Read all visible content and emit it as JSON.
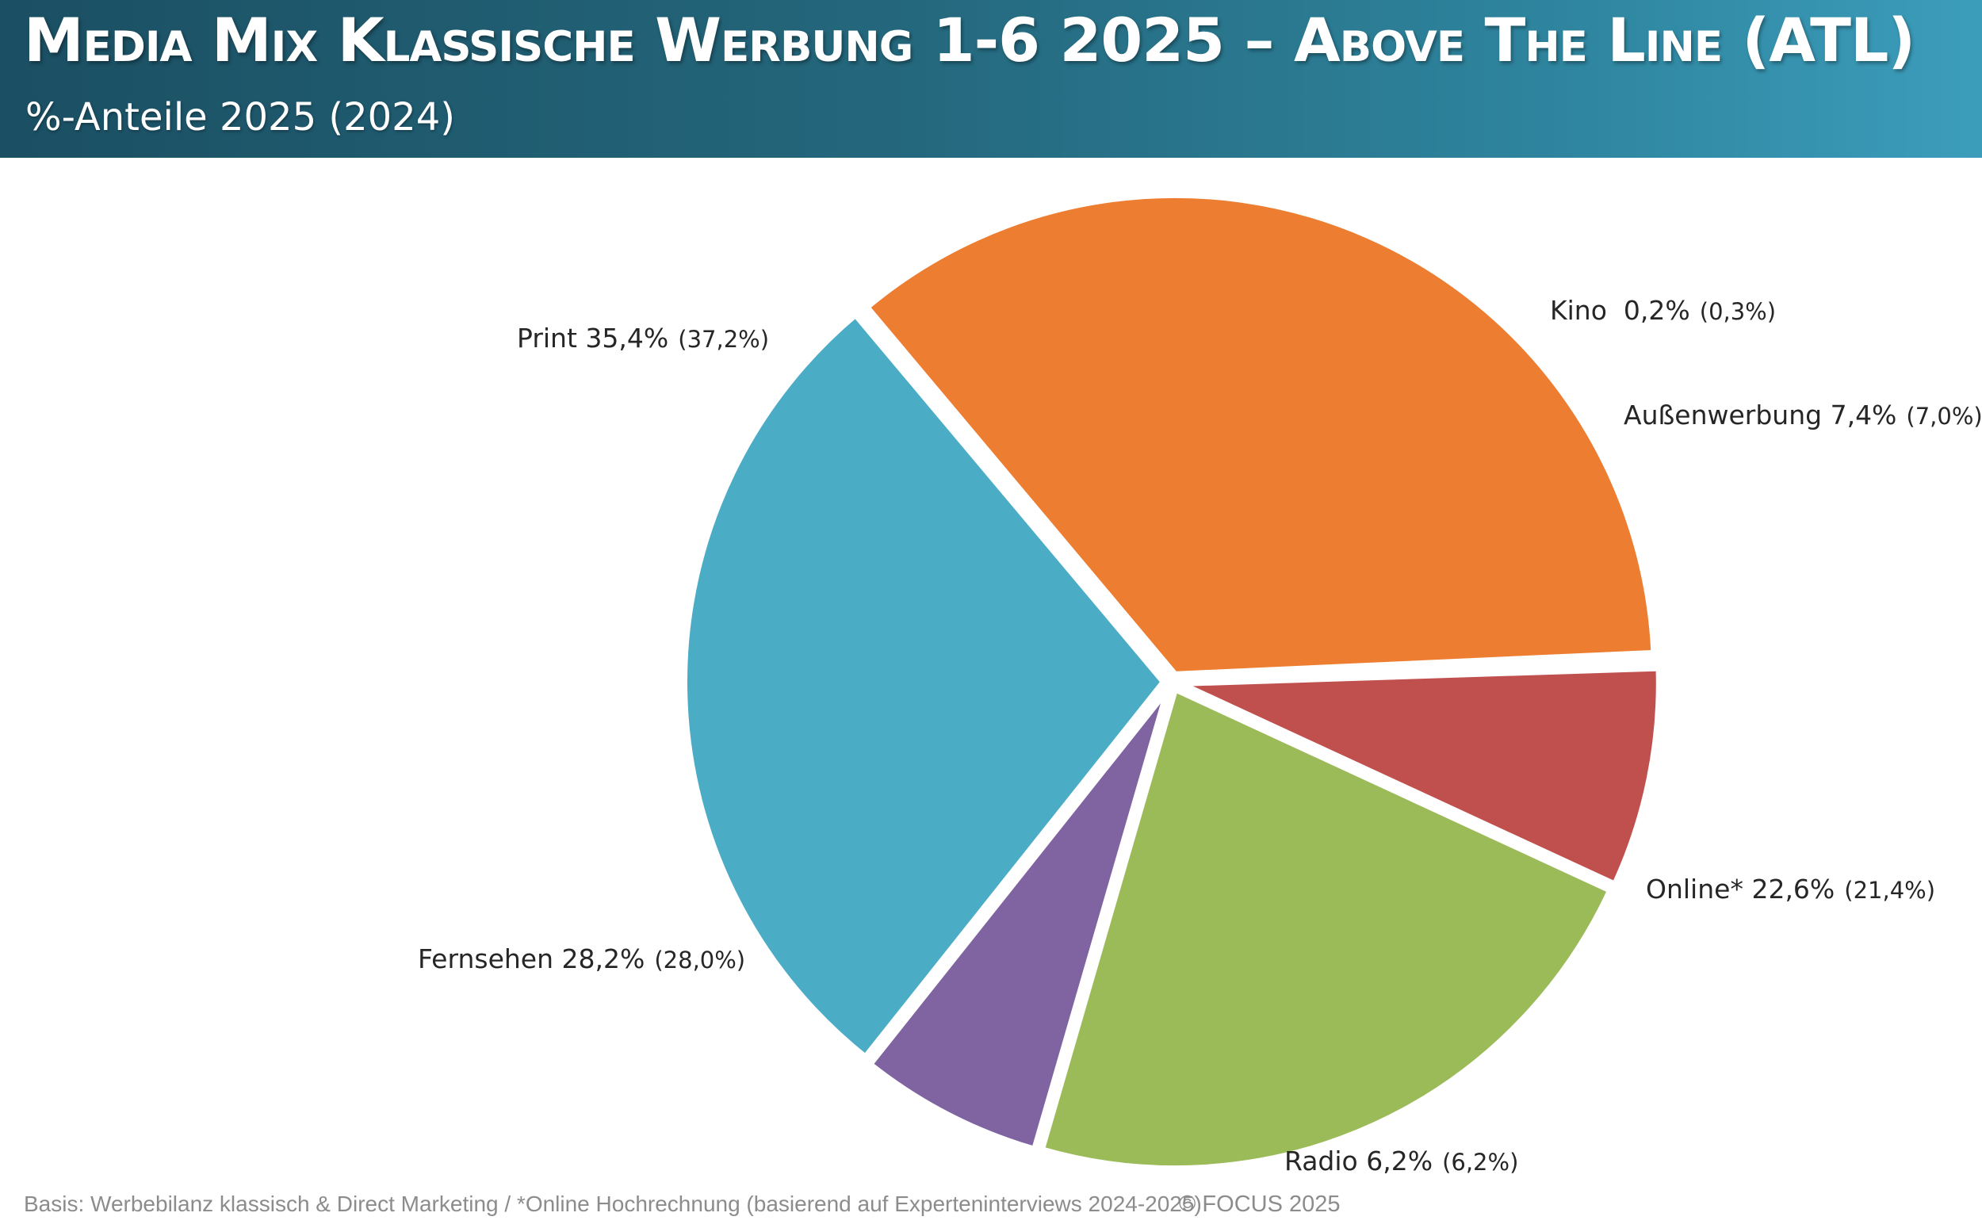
{
  "header": {
    "title": "Media Mix Klassische Werbung 1-6 2025 – Above The Line (ATL)",
    "subtitle": "%-Anteile 2025 (2024)"
  },
  "chart_data": {
    "type": "pie",
    "title": "Media Mix Klassische Werbung 1-6 2025 – Above The Line (ATL)",
    "subtitle": "%-Anteile 2025 (2024)",
    "unit": "%",
    "series": [
      {
        "name": "2025",
        "values": [
          35.4,
          0.2,
          7.4,
          22.6,
          6.2,
          28.2
        ]
      },
      {
        "name": "2024",
        "values": [
          37.2,
          0.3,
          7.0,
          21.4,
          6.2,
          28.0
        ]
      }
    ],
    "slices": [
      {
        "label": "Print",
        "value_text": "35,4%",
        "prev_text": "(37,2%)",
        "value": 35.4,
        "prev": 37.2,
        "color": "#ed7d31"
      },
      {
        "label": "Kino",
        "value_text": "0,2%",
        "prev_text": "(0,3%)",
        "value": 0.2,
        "prev": 0.3,
        "color": "#5b9bd5"
      },
      {
        "label": "Außenwerbung",
        "value_text": "7,4%",
        "prev_text": "(7,0%)",
        "value": 7.4,
        "prev": 7.0,
        "color": "#c0504d"
      },
      {
        "label": "Online*",
        "value_text": "22,6%",
        "prev_text": "(21,4%)",
        "value": 22.6,
        "prev": 21.4,
        "color": "#9bbb59"
      },
      {
        "label": "Radio",
        "value_text": "6,2%",
        "prev_text": "(6,2%)",
        "value": 6.2,
        "prev": 6.2,
        "color": "#8064a2"
      },
      {
        "label": "Fernsehen",
        "value_text": "28,2%",
        "prev_text": "(28,0%)",
        "value": 28.2,
        "prev": 28.0,
        "color": "#4bacc6"
      }
    ],
    "legend": "none"
  },
  "footer": {
    "note": "Basis: Werbebilanz klassisch & Direct Marketing / *Online Hochrechnung (basierend auf Experteninterviews 2024-2025)",
    "copyright": "© FOCUS 2025"
  }
}
